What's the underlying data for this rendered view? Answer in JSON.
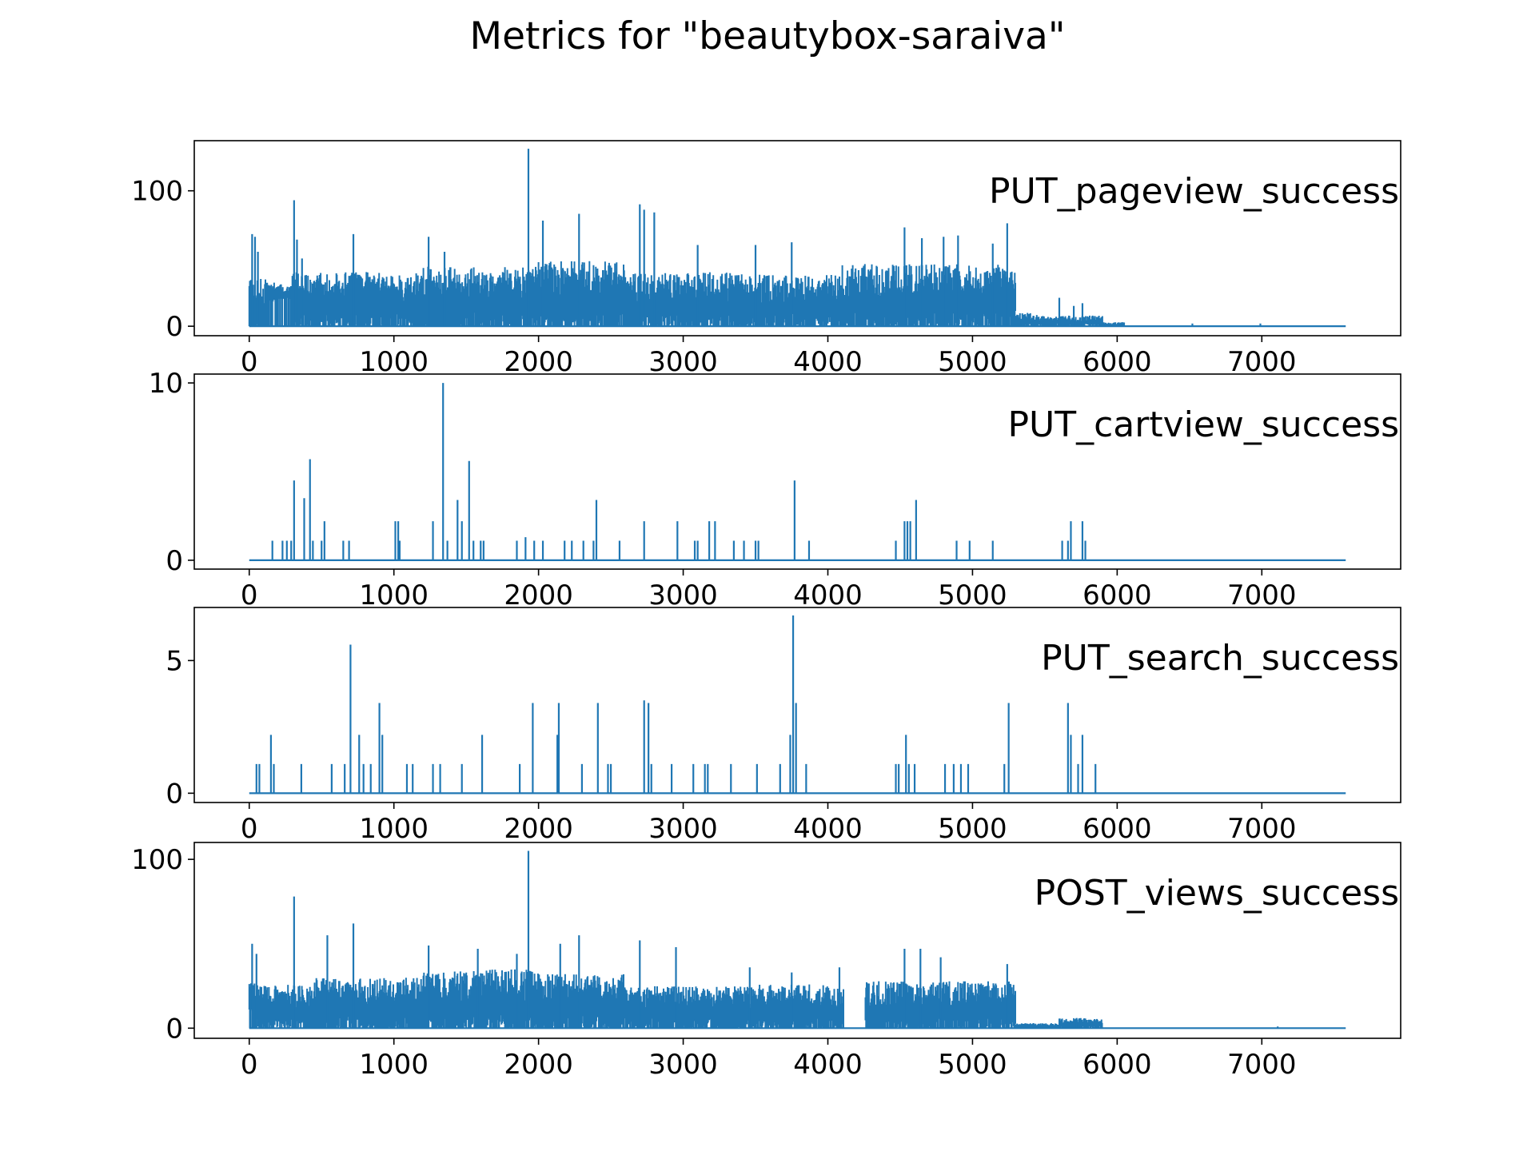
{
  "figure_title": "Metrics for \"beautybox-saraiva\"",
  "colors": {
    "line": "#1f77b4",
    "axes": "#000000",
    "background": "#ffffff"
  },
  "chart_data": [
    {
      "type": "line",
      "title": "PUT_pageview_success",
      "xlim": [
        -380,
        7960
      ],
      "ylim": [
        -7,
        137
      ],
      "xticks": [
        0,
        1000,
        2000,
        3000,
        4000,
        5000,
        6000,
        7000
      ],
      "yticks": [
        0,
        100
      ],
      "x_end": 7580,
      "noise_segments": [
        {
          "from": 0,
          "to": 20,
          "low": 20,
          "high": 36
        },
        {
          "from": 20,
          "to": 120,
          "low": 0,
          "high": 35
        },
        {
          "from": 120,
          "to": 180,
          "low": 18,
          "high": 33
        },
        {
          "from": 180,
          "to": 290,
          "low": 20,
          "high": 31
        },
        {
          "from": 290,
          "to": 450,
          "low": 0,
          "high": 40
        },
        {
          "from": 450,
          "to": 1200,
          "low": 0,
          "high": 40
        },
        {
          "from": 1200,
          "to": 2000,
          "low": 0,
          "high": 44
        },
        {
          "from": 2000,
          "to": 2600,
          "low": 0,
          "high": 48
        },
        {
          "from": 2600,
          "to": 3500,
          "low": 0,
          "high": 40
        },
        {
          "from": 3500,
          "to": 4100,
          "low": 0,
          "high": 38
        },
        {
          "from": 4100,
          "to": 5300,
          "low": 0,
          "high": 46
        },
        {
          "from": 5300,
          "to": 5450,
          "low": 0,
          "high": 10
        },
        {
          "from": 5450,
          "to": 5900,
          "low": 0,
          "high": 8
        },
        {
          "from": 5900,
          "to": 6050,
          "low": 0,
          "high": 3
        },
        {
          "from": 6050,
          "to": 7580,
          "low": 0,
          "high": 0
        }
      ],
      "spikes": [
        {
          "x": 20,
          "y": 68
        },
        {
          "x": 40,
          "y": 66
        },
        {
          "x": 60,
          "y": 55
        },
        {
          "x": 310,
          "y": 93
        },
        {
          "x": 330,
          "y": 64
        },
        {
          "x": 365,
          "y": 50
        },
        {
          "x": 720,
          "y": 68
        },
        {
          "x": 1240,
          "y": 66
        },
        {
          "x": 1350,
          "y": 55
        },
        {
          "x": 1930,
          "y": 131
        },
        {
          "x": 2030,
          "y": 78
        },
        {
          "x": 2280,
          "y": 83
        },
        {
          "x": 2700,
          "y": 90
        },
        {
          "x": 2730,
          "y": 86
        },
        {
          "x": 2800,
          "y": 84
        },
        {
          "x": 3100,
          "y": 60
        },
        {
          "x": 3500,
          "y": 60
        },
        {
          "x": 3750,
          "y": 62
        },
        {
          "x": 4530,
          "y": 73
        },
        {
          "x": 4650,
          "y": 65
        },
        {
          "x": 4800,
          "y": 66
        },
        {
          "x": 4900,
          "y": 67
        },
        {
          "x": 5140,
          "y": 61
        },
        {
          "x": 5240,
          "y": 76
        },
        {
          "x": 5600,
          "y": 21
        },
        {
          "x": 5700,
          "y": 15
        },
        {
          "x": 5760,
          "y": 17
        },
        {
          "x": 6520,
          "y": 2
        },
        {
          "x": 6990,
          "y": 2
        }
      ],
      "seed": 11
    },
    {
      "type": "line",
      "title": "PUT_cartview_success",
      "xlim": [
        -380,
        7960
      ],
      "ylim": [
        -0.5,
        10.5
      ],
      "xticks": [
        0,
        1000,
        2000,
        3000,
        4000,
        5000,
        6000,
        7000
      ],
      "yticks": [
        0,
        10
      ],
      "x_end": 7580,
      "spikes": [
        {
          "x": 160,
          "y": 1.1
        },
        {
          "x": 230,
          "y": 1.1
        },
        {
          "x": 260,
          "y": 1.1
        },
        {
          "x": 290,
          "y": 1.1
        },
        {
          "x": 310,
          "y": 4.5
        },
        {
          "x": 380,
          "y": 3.5
        },
        {
          "x": 420,
          "y": 5.7
        },
        {
          "x": 440,
          "y": 1.1
        },
        {
          "x": 500,
          "y": 1.1
        },
        {
          "x": 520,
          "y": 2.2
        },
        {
          "x": 650,
          "y": 1.1
        },
        {
          "x": 690,
          "y": 1.1
        },
        {
          "x": 1010,
          "y": 2.2
        },
        {
          "x": 1030,
          "y": 2.2
        },
        {
          "x": 1040,
          "y": 1.1
        },
        {
          "x": 1270,
          "y": 2.2
        },
        {
          "x": 1340,
          "y": 10.0
        },
        {
          "x": 1370,
          "y": 1.1
        },
        {
          "x": 1440,
          "y": 3.4
        },
        {
          "x": 1470,
          "y": 2.2
        },
        {
          "x": 1520,
          "y": 5.6
        },
        {
          "x": 1550,
          "y": 1.1
        },
        {
          "x": 1600,
          "y": 1.1
        },
        {
          "x": 1620,
          "y": 1.1
        },
        {
          "x": 1850,
          "y": 1.1
        },
        {
          "x": 1910,
          "y": 1.3
        },
        {
          "x": 1970,
          "y": 1.1
        },
        {
          "x": 2030,
          "y": 1.1
        },
        {
          "x": 2180,
          "y": 1.1
        },
        {
          "x": 2230,
          "y": 1.1
        },
        {
          "x": 2310,
          "y": 1.1
        },
        {
          "x": 2380,
          "y": 1.1
        },
        {
          "x": 2400,
          "y": 3.4
        },
        {
          "x": 2560,
          "y": 1.1
        },
        {
          "x": 2730,
          "y": 2.2
        },
        {
          "x": 2960,
          "y": 2.2
        },
        {
          "x": 3080,
          "y": 1.1
        },
        {
          "x": 3100,
          "y": 1.1
        },
        {
          "x": 3180,
          "y": 2.2
        },
        {
          "x": 3220,
          "y": 2.2
        },
        {
          "x": 3350,
          "y": 1.1
        },
        {
          "x": 3420,
          "y": 1.1
        },
        {
          "x": 3500,
          "y": 1.1
        },
        {
          "x": 3520,
          "y": 1.1
        },
        {
          "x": 3770,
          "y": 4.5
        },
        {
          "x": 3870,
          "y": 1.1
        },
        {
          "x": 4470,
          "y": 1.1
        },
        {
          "x": 4530,
          "y": 2.2
        },
        {
          "x": 4550,
          "y": 2.2
        },
        {
          "x": 4570,
          "y": 2.2
        },
        {
          "x": 4610,
          "y": 3.4
        },
        {
          "x": 4890,
          "y": 1.1
        },
        {
          "x": 4980,
          "y": 1.1
        },
        {
          "x": 5140,
          "y": 1.1
        },
        {
          "x": 5620,
          "y": 1.1
        },
        {
          "x": 5660,
          "y": 1.1
        },
        {
          "x": 5680,
          "y": 2.2
        },
        {
          "x": 5760,
          "y": 2.2
        },
        {
          "x": 5780,
          "y": 1.1
        }
      ]
    },
    {
      "type": "line",
      "title": "PUT_search_success",
      "xlim": [
        -380,
        7960
      ],
      "ylim": [
        -0.35,
        7.0
      ],
      "xticks": [
        0,
        1000,
        2000,
        3000,
        4000,
        5000,
        6000,
        7000
      ],
      "yticks": [
        0,
        5
      ],
      "x_end": 7580,
      "spikes": [
        {
          "x": 50,
          "y": 1.1
        },
        {
          "x": 70,
          "y": 1.1
        },
        {
          "x": 150,
          "y": 2.2
        },
        {
          "x": 170,
          "y": 1.1
        },
        {
          "x": 360,
          "y": 1.1
        },
        {
          "x": 570,
          "y": 1.1
        },
        {
          "x": 660,
          "y": 1.1
        },
        {
          "x": 700,
          "y": 5.6
        },
        {
          "x": 760,
          "y": 2.2
        },
        {
          "x": 790,
          "y": 1.1
        },
        {
          "x": 840,
          "y": 1.1
        },
        {
          "x": 900,
          "y": 3.4
        },
        {
          "x": 920,
          "y": 2.2
        },
        {
          "x": 1090,
          "y": 1.1
        },
        {
          "x": 1130,
          "y": 1.1
        },
        {
          "x": 1270,
          "y": 1.1
        },
        {
          "x": 1320,
          "y": 1.1
        },
        {
          "x": 1470,
          "y": 1.1
        },
        {
          "x": 1610,
          "y": 2.2
        },
        {
          "x": 1870,
          "y": 1.1
        },
        {
          "x": 1960,
          "y": 3.4
        },
        {
          "x": 2130,
          "y": 2.2
        },
        {
          "x": 2140,
          "y": 3.4
        },
        {
          "x": 2300,
          "y": 1.1
        },
        {
          "x": 2410,
          "y": 3.4
        },
        {
          "x": 2480,
          "y": 1.1
        },
        {
          "x": 2500,
          "y": 1.1
        },
        {
          "x": 2730,
          "y": 3.5
        },
        {
          "x": 2760,
          "y": 3.4
        },
        {
          "x": 2780,
          "y": 1.1
        },
        {
          "x": 2920,
          "y": 1.1
        },
        {
          "x": 3070,
          "y": 1.1
        },
        {
          "x": 3150,
          "y": 1.1
        },
        {
          "x": 3170,
          "y": 1.1
        },
        {
          "x": 3330,
          "y": 1.1
        },
        {
          "x": 3510,
          "y": 1.1
        },
        {
          "x": 3670,
          "y": 1.1
        },
        {
          "x": 3740,
          "y": 2.2
        },
        {
          "x": 3760,
          "y": 6.7
        },
        {
          "x": 3780,
          "y": 3.4
        },
        {
          "x": 3850,
          "y": 1.1
        },
        {
          "x": 4470,
          "y": 1.1
        },
        {
          "x": 4490,
          "y": 1.1
        },
        {
          "x": 4540,
          "y": 2.2
        },
        {
          "x": 4560,
          "y": 1.1
        },
        {
          "x": 4600,
          "y": 1.1
        },
        {
          "x": 4810,
          "y": 1.1
        },
        {
          "x": 4870,
          "y": 1.1
        },
        {
          "x": 4920,
          "y": 1.1
        },
        {
          "x": 4970,
          "y": 1.1
        },
        {
          "x": 5220,
          "y": 1.1
        },
        {
          "x": 5250,
          "y": 3.4
        },
        {
          "x": 5660,
          "y": 3.4
        },
        {
          "x": 5680,
          "y": 2.2
        },
        {
          "x": 5730,
          "y": 1.1
        },
        {
          "x": 5760,
          "y": 2.2
        },
        {
          "x": 5850,
          "y": 1.1
        }
      ]
    },
    {
      "type": "line",
      "title": "POST_views_success",
      "xlim": [
        -380,
        7960
      ],
      "ylim": [
        -6,
        110
      ],
      "xticks": [
        0,
        1000,
        2000,
        3000,
        4000,
        5000,
        6000,
        7000
      ],
      "yticks": [
        0,
        100
      ],
      "x_end": 7580,
      "noise_segments": [
        {
          "from": 0,
          "to": 40,
          "low": 10,
          "high": 27
        },
        {
          "from": 40,
          "to": 440,
          "low": 0,
          "high": 26
        },
        {
          "from": 440,
          "to": 1200,
          "low": 0,
          "high": 30
        },
        {
          "from": 1200,
          "to": 2000,
          "low": 0,
          "high": 35
        },
        {
          "from": 2000,
          "to": 2600,
          "low": 0,
          "high": 32
        },
        {
          "from": 2600,
          "to": 3500,
          "low": 0,
          "high": 25
        },
        {
          "from": 3500,
          "to": 4110,
          "low": 0,
          "high": 26
        },
        {
          "from": 4110,
          "to": 4260,
          "low": 0,
          "high": 0
        },
        {
          "from": 4260,
          "to": 5300,
          "low": 0,
          "high": 28
        },
        {
          "from": 5300,
          "to": 5600,
          "low": 0,
          "high": 3
        },
        {
          "from": 5600,
          "to": 5900,
          "low": 0,
          "high": 6
        },
        {
          "from": 5900,
          "to": 7580,
          "low": 0,
          "high": 0
        }
      ],
      "spikes": [
        {
          "x": 20,
          "y": 50
        },
        {
          "x": 50,
          "y": 44
        },
        {
          "x": 310,
          "y": 78
        },
        {
          "x": 540,
          "y": 55
        },
        {
          "x": 720,
          "y": 62
        },
        {
          "x": 1240,
          "y": 49
        },
        {
          "x": 1580,
          "y": 47
        },
        {
          "x": 1850,
          "y": 44
        },
        {
          "x": 1930,
          "y": 105
        },
        {
          "x": 2150,
          "y": 50
        },
        {
          "x": 2280,
          "y": 55
        },
        {
          "x": 2700,
          "y": 52
        },
        {
          "x": 2950,
          "y": 48
        },
        {
          "x": 3460,
          "y": 36
        },
        {
          "x": 3750,
          "y": 33
        },
        {
          "x": 4080,
          "y": 36
        },
        {
          "x": 4530,
          "y": 47
        },
        {
          "x": 4640,
          "y": 47
        },
        {
          "x": 4780,
          "y": 42
        },
        {
          "x": 5240,
          "y": 38
        },
        {
          "x": 5720,
          "y": 6
        },
        {
          "x": 7110,
          "y": 1
        }
      ],
      "seed": 29
    }
  ]
}
